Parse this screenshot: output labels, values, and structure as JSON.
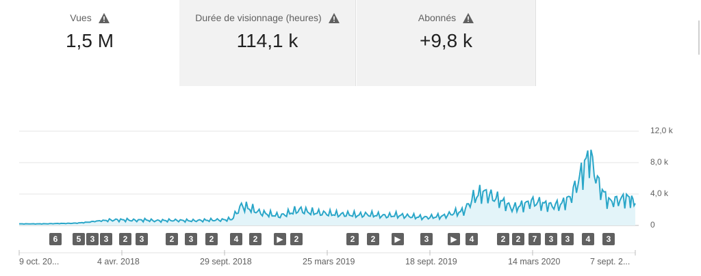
{
  "metrics": [
    {
      "title": "Vues",
      "value": "1,5 M"
    },
    {
      "title": "Durée de visionnage (heures)",
      "value": "114,1 k"
    },
    {
      "title": "Abonnés",
      "value": "+9,8 k"
    }
  ],
  "colors": {
    "line": "#2aa6c8",
    "fill": "#e3f4f9",
    "grid": "#e6e6e6",
    "marker": "#606060",
    "selected_card": "#f2f2f2"
  },
  "icons": {
    "metric_warning": "warning-triangle-icon",
    "play_marker": "play-icon"
  },
  "annotations": [
    "6",
    "5",
    "3",
    "3",
    "2",
    "3",
    "2",
    "3",
    "2",
    "4",
    "2",
    "▶",
    "2",
    "2",
    "2",
    "▶",
    "3",
    "▶",
    "4",
    "2",
    "2",
    "7",
    "3",
    "3",
    "4",
    "3"
  ],
  "chart_data": {
    "type": "area",
    "x_tick_labels": [
      "9 oct. 20...",
      "4 avr. 2018",
      "29 sept. 2018",
      "25 mars 2019",
      "18 sept. 2019",
      "14 mars 2020",
      "7 sept. 2..."
    ],
    "y_tick_labels": [
      "12,0 k",
      "8,0 k",
      "4,0 k",
      "0"
    ],
    "ylim": [
      0,
      12000
    ],
    "grid": true,
    "series": [
      {
        "x": [
          0,
          20,
          40,
          60,
          80,
          100,
          120,
          140,
          160,
          180,
          200,
          220,
          240,
          260,
          280,
          300,
          320,
          340,
          360,
          380,
          400,
          420,
          440,
          460,
          480,
          500,
          520,
          540,
          560,
          580,
          600,
          620,
          640,
          660,
          680,
          700,
          720,
          740,
          760,
          780,
          800,
          820,
          840,
          860,
          880,
          900,
          920,
          940,
          960,
          980,
          1000,
          1020,
          1040,
          1060,
          1080,
          1100,
          1120,
          1140,
          1160,
          1180,
          1200,
          1220,
          1240,
          1260,
          1275
        ],
        "y": [
          200,
          200,
          200,
          220,
          250,
          260,
          300,
          400,
          550,
          650,
          700,
          700,
          650,
          700,
          600,
          620,
          650,
          620,
          600,
          650,
          680,
          700,
          800,
          2500,
          2100,
          1600,
          1400,
          1200,
          1600,
          2000,
          1700,
          1600,
          1500,
          1400,
          1400,
          1300,
          1400,
          1300,
          1200,
          1300,
          1200,
          1100,
          1000,
          1100,
          1200,
          1600,
          1800,
          3500,
          4200,
          3600,
          3000,
          2200,
          2500,
          3000,
          2800,
          2500,
          2600,
          3500,
          6000,
          9000,
          5000,
          3000,
          3200,
          3500,
          2800
        ]
      }
    ]
  }
}
